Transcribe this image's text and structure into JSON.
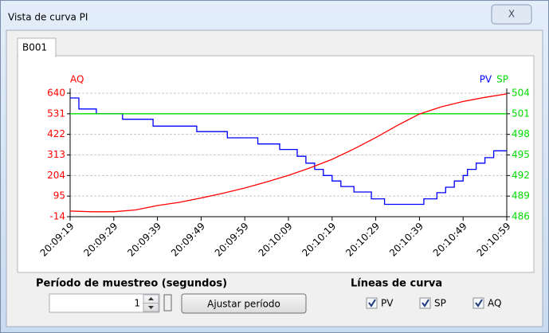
{
  "window": {
    "title": "Vista de curva PI",
    "close": "X"
  },
  "tab": "B001",
  "chart_data": {
    "type": "line",
    "xlim": [
      72559,
      72659
    ],
    "xticks": [
      {
        "value": 72559,
        "label": "20:09:19"
      },
      {
        "value": 72569,
        "label": "20:09:29"
      },
      {
        "value": 72579,
        "label": "20:09:39"
      },
      {
        "value": 72589,
        "label": "20:09:49"
      },
      {
        "value": 72599,
        "label": "20:09:59"
      },
      {
        "value": 72609,
        "label": "20:10:09"
      },
      {
        "value": 72619,
        "label": "20:10:19"
      },
      {
        "value": 72629,
        "label": "20:10:29"
      },
      {
        "value": 72639,
        "label": "20:10:39"
      },
      {
        "value": 72649,
        "label": "20:10:49"
      },
      {
        "value": 72659,
        "label": "20:10:59"
      }
    ],
    "ylim": [
      -14,
      640
    ],
    "yticks": [
      -14,
      95,
      204,
      313,
      422,
      531,
      640
    ],
    "y2lim": [
      486,
      504
    ],
    "y2ticks": [
      486,
      489,
      492,
      495,
      498,
      501,
      504
    ],
    "grid": true,
    "series": [
      {
        "name": "PV",
        "color": "#0000ff",
        "axis": "y2",
        "x": [
          72559,
          72561,
          72561,
          72565,
          72565,
          72571,
          72571,
          72578,
          72578,
          72588,
          72588,
          72595,
          72595,
          72602,
          72602,
          72607,
          72607,
          72611,
          72611,
          72613,
          72613,
          72615,
          72615,
          72617,
          72617,
          72619,
          72619,
          72621,
          72621,
          72624,
          72624,
          72628,
          72628,
          72631,
          72631,
          72640,
          72640,
          72643,
          72643,
          72645,
          72645,
          72647,
          72647,
          72649,
          72649,
          72650,
          72650,
          72652,
          72652,
          72654,
          72654,
          72656,
          72656,
          72659
        ],
        "values": [
          503.3,
          503.3,
          501.7,
          501.7,
          501.0,
          501.0,
          500.2,
          500.2,
          499.2,
          499.2,
          498.4,
          498.4,
          497.5,
          497.5,
          496.6,
          496.6,
          495.8,
          495.8,
          494.8,
          494.8,
          493.8,
          493.8,
          492.9,
          492.9,
          492.0,
          492.0,
          491.2,
          491.2,
          490.4,
          490.4,
          489.6,
          489.6,
          488.6,
          488.6,
          487.8,
          487.8,
          488.6,
          488.6,
          489.5,
          489.5,
          490.3,
          490.3,
          491.2,
          491.2,
          492.0,
          492.0,
          492.9,
          492.9,
          493.8,
          493.8,
          494.6,
          494.6,
          495.6,
          495.6
        ]
      },
      {
        "name": "SP",
        "color": "#00dd00",
        "axis": "y2",
        "x": [
          72559,
          72659
        ],
        "values": [
          501,
          501
        ]
      },
      {
        "name": "AQ",
        "color": "#ff0000",
        "axis": "y",
        "x": [
          72559,
          72564,
          72569,
          72574,
          72579,
          72584,
          72589,
          72594,
          72599,
          72604,
          72609,
          72614,
          72619,
          72624,
          72629,
          72634,
          72639,
          72644,
          72649,
          72654,
          72659
        ],
        "values": [
          16,
          12,
          12,
          22,
          45,
          62,
          85,
          110,
          138,
          170,
          205,
          245,
          290,
          345,
          405,
          470,
          530,
          568,
          596,
          618,
          636
        ]
      }
    ]
  },
  "controls": {
    "sample_period": {
      "label": "Período de muestreo (segundos)",
      "value": "1",
      "button": "Ajustar período"
    },
    "curve_lines": {
      "label": "Líneas de curva",
      "options": [
        {
          "label": "PV",
          "checked": true
        },
        {
          "label": "SP",
          "checked": true
        },
        {
          "label": "AQ",
          "checked": true
        }
      ]
    }
  }
}
